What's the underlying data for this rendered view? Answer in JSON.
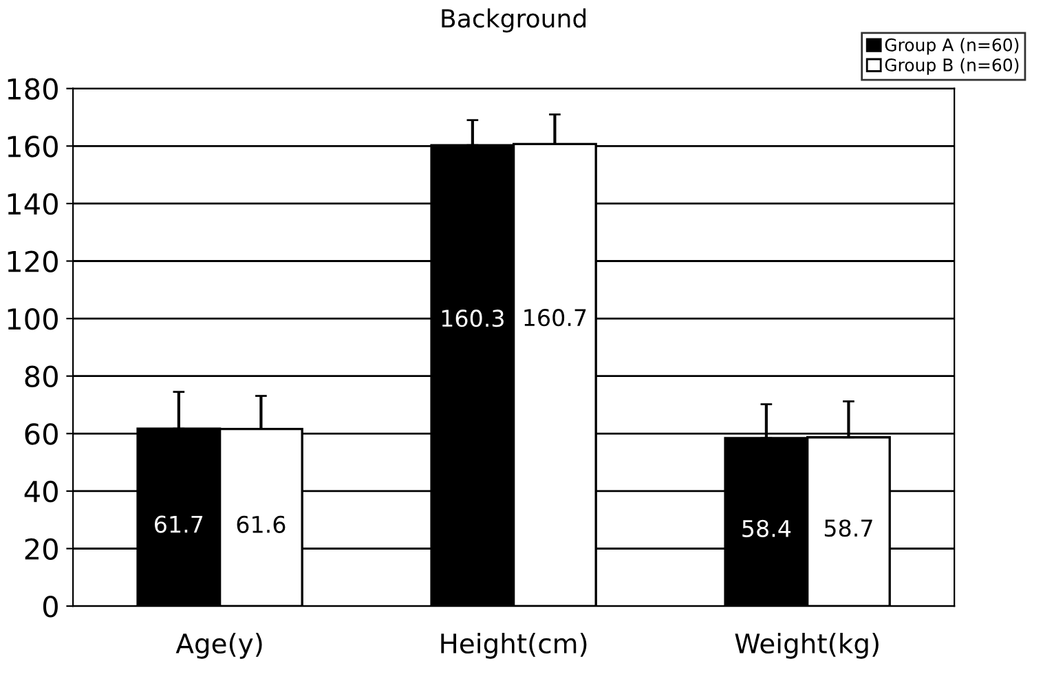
{
  "chart_data": {
    "type": "bar",
    "title": "Background",
    "categories": [
      "Age(y)",
      "Height(cm)",
      "Weight(kg)"
    ],
    "series": [
      {
        "name": "Group A (n=60)",
        "color": "#000000",
        "values": [
          61.7,
          160.3,
          58.4
        ],
        "errors": [
          [
            61.7,
            74.5
          ],
          [
            160.3,
            169.0
          ],
          [
            58.4,
            70.2
          ]
        ]
      },
      {
        "name": "Group B (n=60)",
        "color": "#ffffff",
        "values": [
          61.6,
          160.7,
          58.7
        ],
        "errors": [
          [
            61.6,
            73.1
          ],
          [
            160.7,
            171.0
          ],
          [
            58.7,
            71.2
          ]
        ]
      }
    ],
    "ylim": [
      0,
      180
    ],
    "yticks": [
      0,
      20,
      40,
      60,
      80,
      100,
      120,
      140,
      160,
      180
    ],
    "grid": "y",
    "legend": "top right",
    "data_labels": true
  }
}
